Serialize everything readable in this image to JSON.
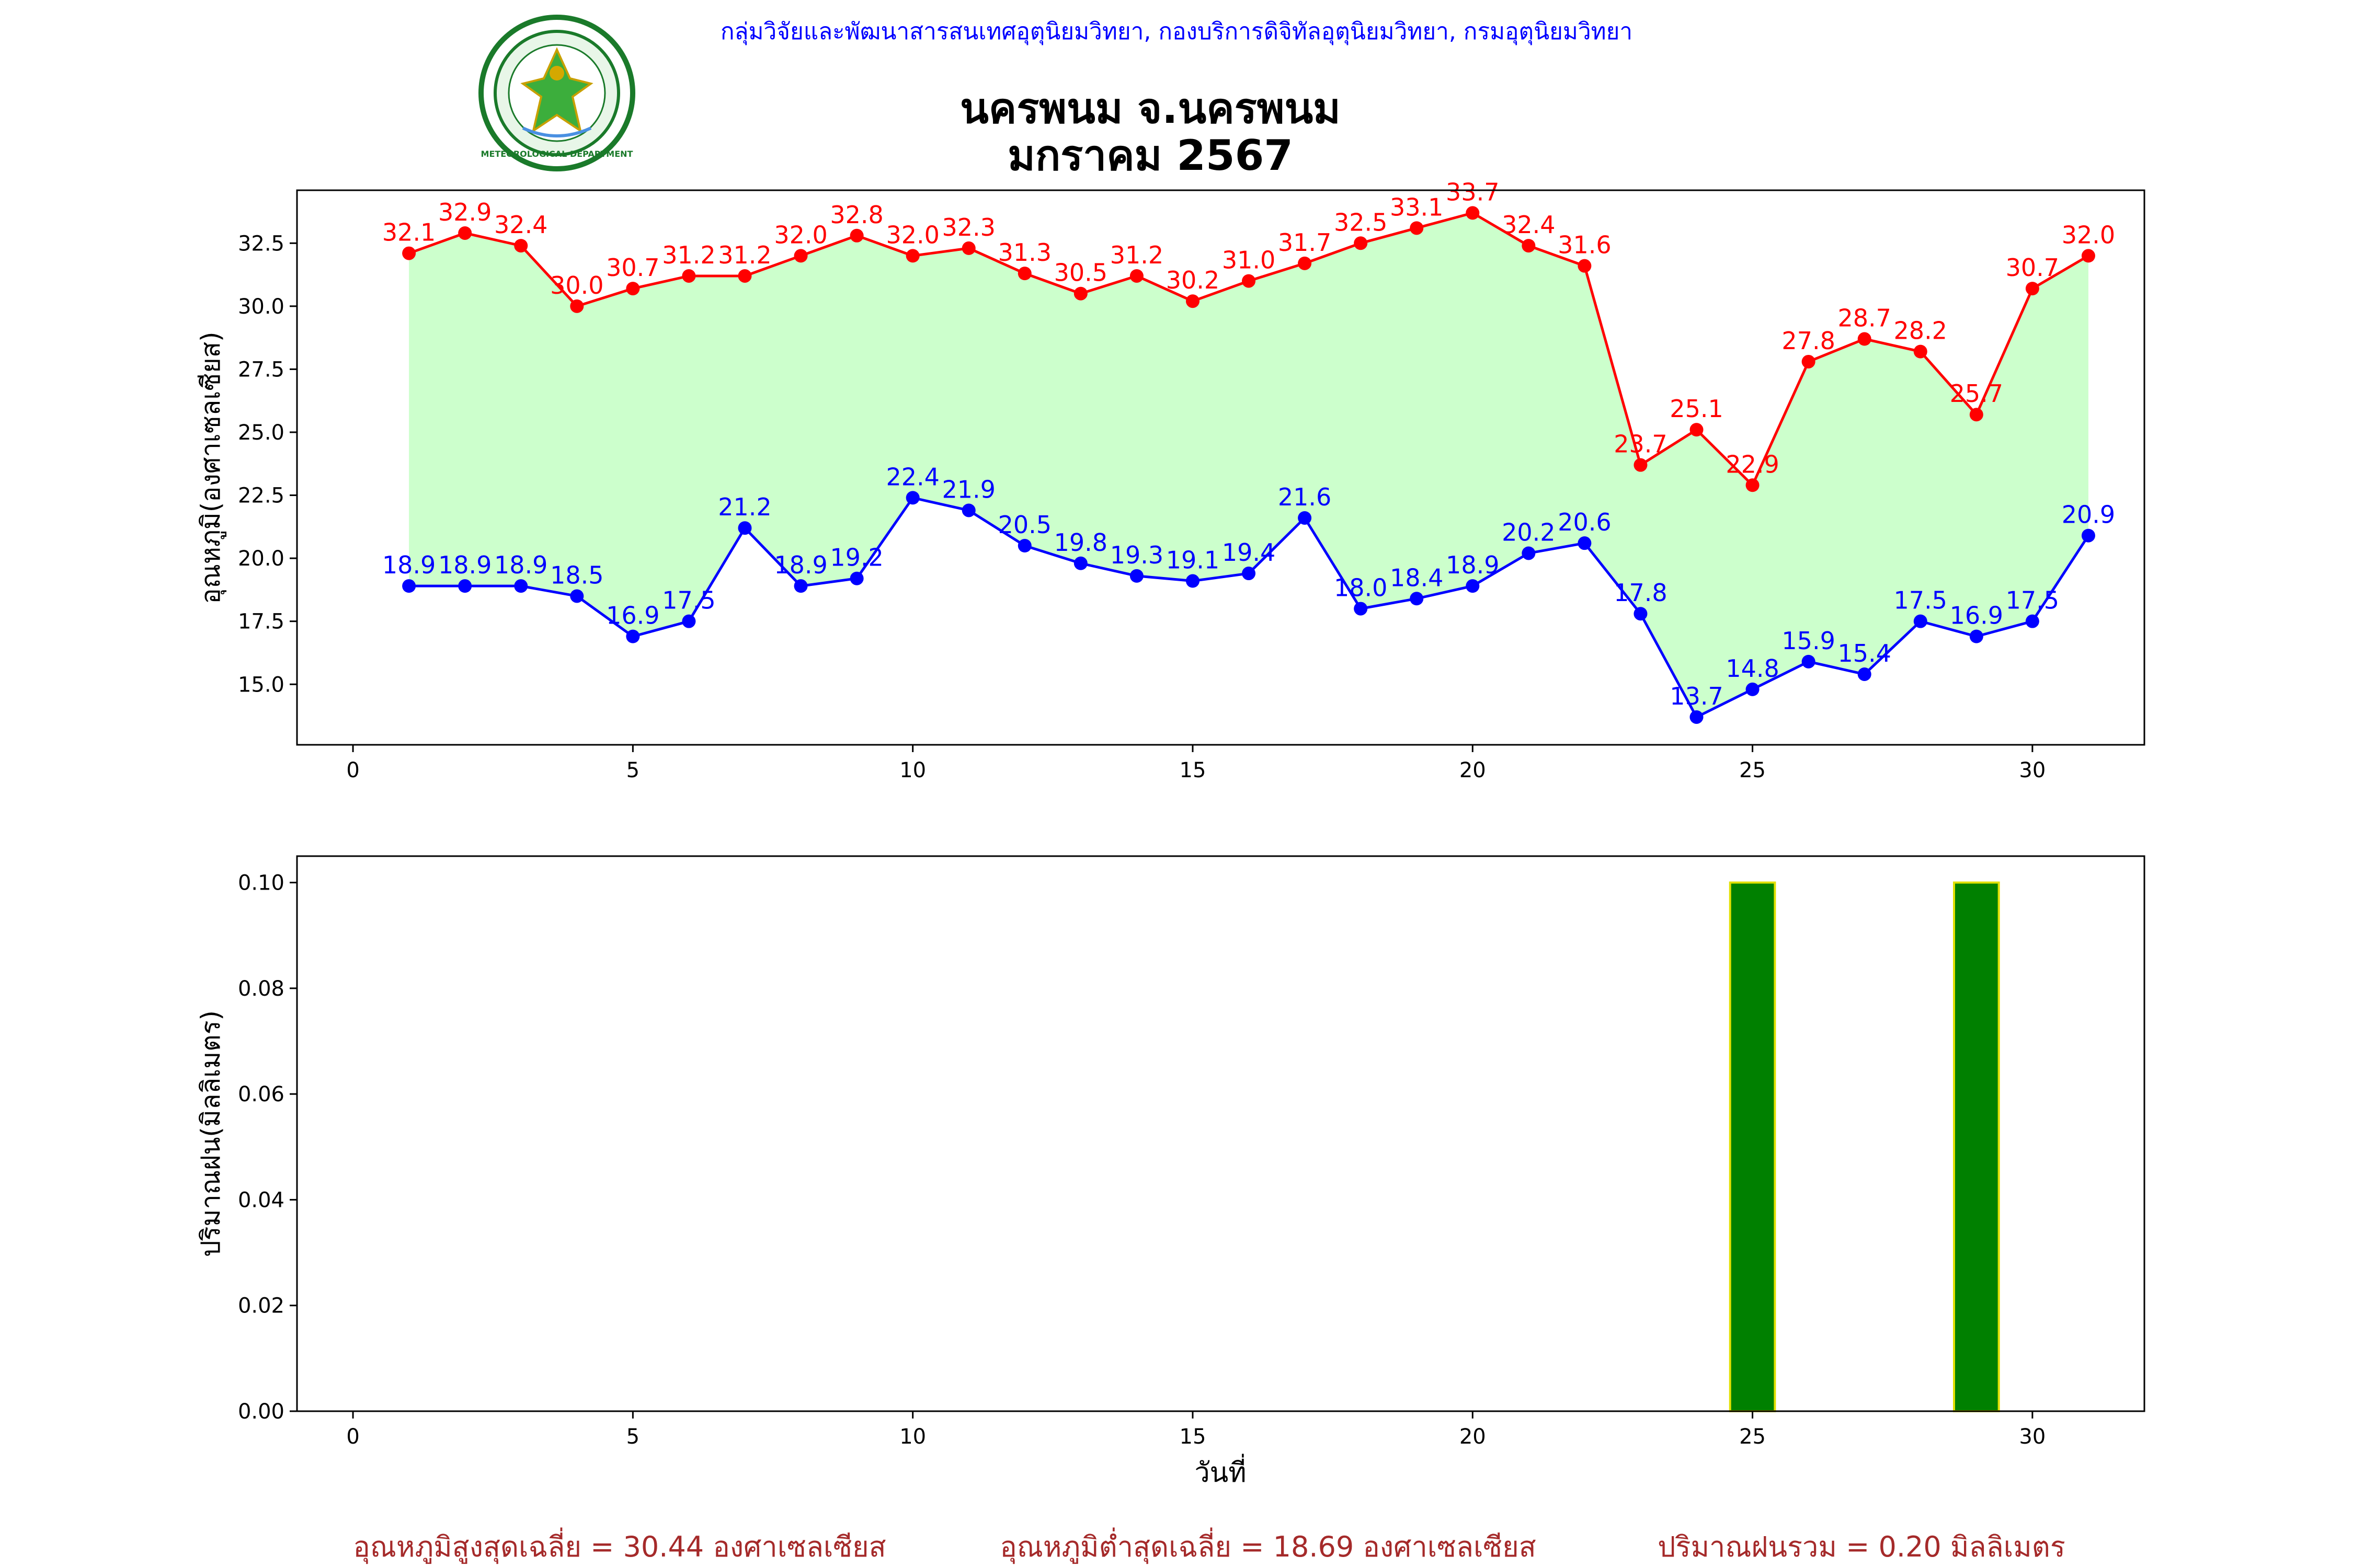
{
  "header": {
    "org_line": "กลุ่มวิจัยและพัฒนาสารสนเทศอุตุนิยมวิทยา, กองบริการดิจิทัลอุตุนิยมวิทยา, กรมอุตุนิยมวิทยา",
    "logo_text": "METEOROLOGICAL DEPARTMENT",
    "title_line1": "นครพนม จ.นครพนม",
    "title_line2": "มกราคม 2567"
  },
  "colors": {
    "org_line": "#0000ff",
    "max_series": "#ff0000",
    "min_series": "#0000ff",
    "fill_between": "#ccffcc",
    "rain_bar": "#008000",
    "rain_bar_edge": "#e0e000",
    "footer": "#a52a2a"
  },
  "chart_data": [
    {
      "type": "line",
      "title": "",
      "xlabel": "",
      "ylabel": "อุณหภูมิ(องศาเซลเซียส)",
      "x": [
        1,
        2,
        3,
        4,
        5,
        6,
        7,
        8,
        9,
        10,
        11,
        12,
        13,
        14,
        15,
        16,
        17,
        18,
        19,
        20,
        21,
        22,
        23,
        24,
        25,
        26,
        27,
        28,
        29,
        30,
        31
      ],
      "series": [
        {
          "values": [
            32.1,
            32.9,
            32.4,
            30.0,
            30.7,
            31.2,
            31.2,
            32.0,
            32.8,
            32.0,
            32.3,
            31.3,
            30.5,
            31.2,
            30.2,
            31.0,
            31.7,
            32.5,
            33.1,
            33.7,
            32.4,
            31.6,
            23.7,
            25.1,
            22.9,
            27.8,
            28.7,
            28.2,
            25.7,
            30.7,
            32.0
          ]
        },
        {
          "values": [
            18.9,
            18.9,
            18.9,
            18.5,
            16.9,
            17.5,
            21.2,
            18.9,
            19.2,
            22.4,
            21.9,
            20.5,
            19.8,
            19.3,
            19.1,
            19.4,
            21.6,
            18.0,
            18.4,
            18.9,
            20.2,
            20.6,
            17.8,
            13.7,
            14.8,
            15.9,
            15.4,
            17.5,
            16.9,
            17.5,
            20.9
          ]
        }
      ],
      "fill_between": true,
      "xlim": [
        -1,
        32
      ],
      "ylim": [
        12.6,
        34.6
      ],
      "xticks": [
        0,
        5,
        10,
        15,
        20,
        25,
        30
      ],
      "yticks": [
        15.0,
        17.5,
        20.0,
        22.5,
        25.0,
        27.5,
        30.0,
        32.5
      ]
    },
    {
      "type": "bar",
      "title": "",
      "xlabel": "วันที่",
      "ylabel": "ปริมาณฝน(มิลลิเมตร)",
      "x": [
        1,
        2,
        3,
        4,
        5,
        6,
        7,
        8,
        9,
        10,
        11,
        12,
        13,
        14,
        15,
        16,
        17,
        18,
        19,
        20,
        21,
        22,
        23,
        24,
        25,
        26,
        27,
        28,
        29,
        30,
        31
      ],
      "values": [
        0,
        0,
        0,
        0,
        0,
        0,
        0,
        0,
        0,
        0,
        0,
        0,
        0,
        0,
        0,
        0,
        0,
        0,
        0,
        0,
        0,
        0,
        0,
        0,
        0.1,
        0,
        0,
        0,
        0.1,
        0,
        0
      ],
      "xlim": [
        -1,
        32
      ],
      "ylim": [
        0,
        0.105
      ],
      "xticks": [
        0,
        5,
        10,
        15,
        20,
        25,
        30
      ],
      "yticks": [
        0.0,
        0.02,
        0.04,
        0.06,
        0.08,
        0.1
      ]
    }
  ],
  "footer": {
    "avg_max": "อุณหภูมิสูงสุดเฉลี่ย = 30.44 องศาเซลเซียส",
    "avg_min": "อุณหภูมิต่ำสุดเฉลี่ย = 18.69 องศาเซลเซียส",
    "total_rain": "ปริมาณฝนรวม = 0.20 มิลลิเมตร"
  }
}
